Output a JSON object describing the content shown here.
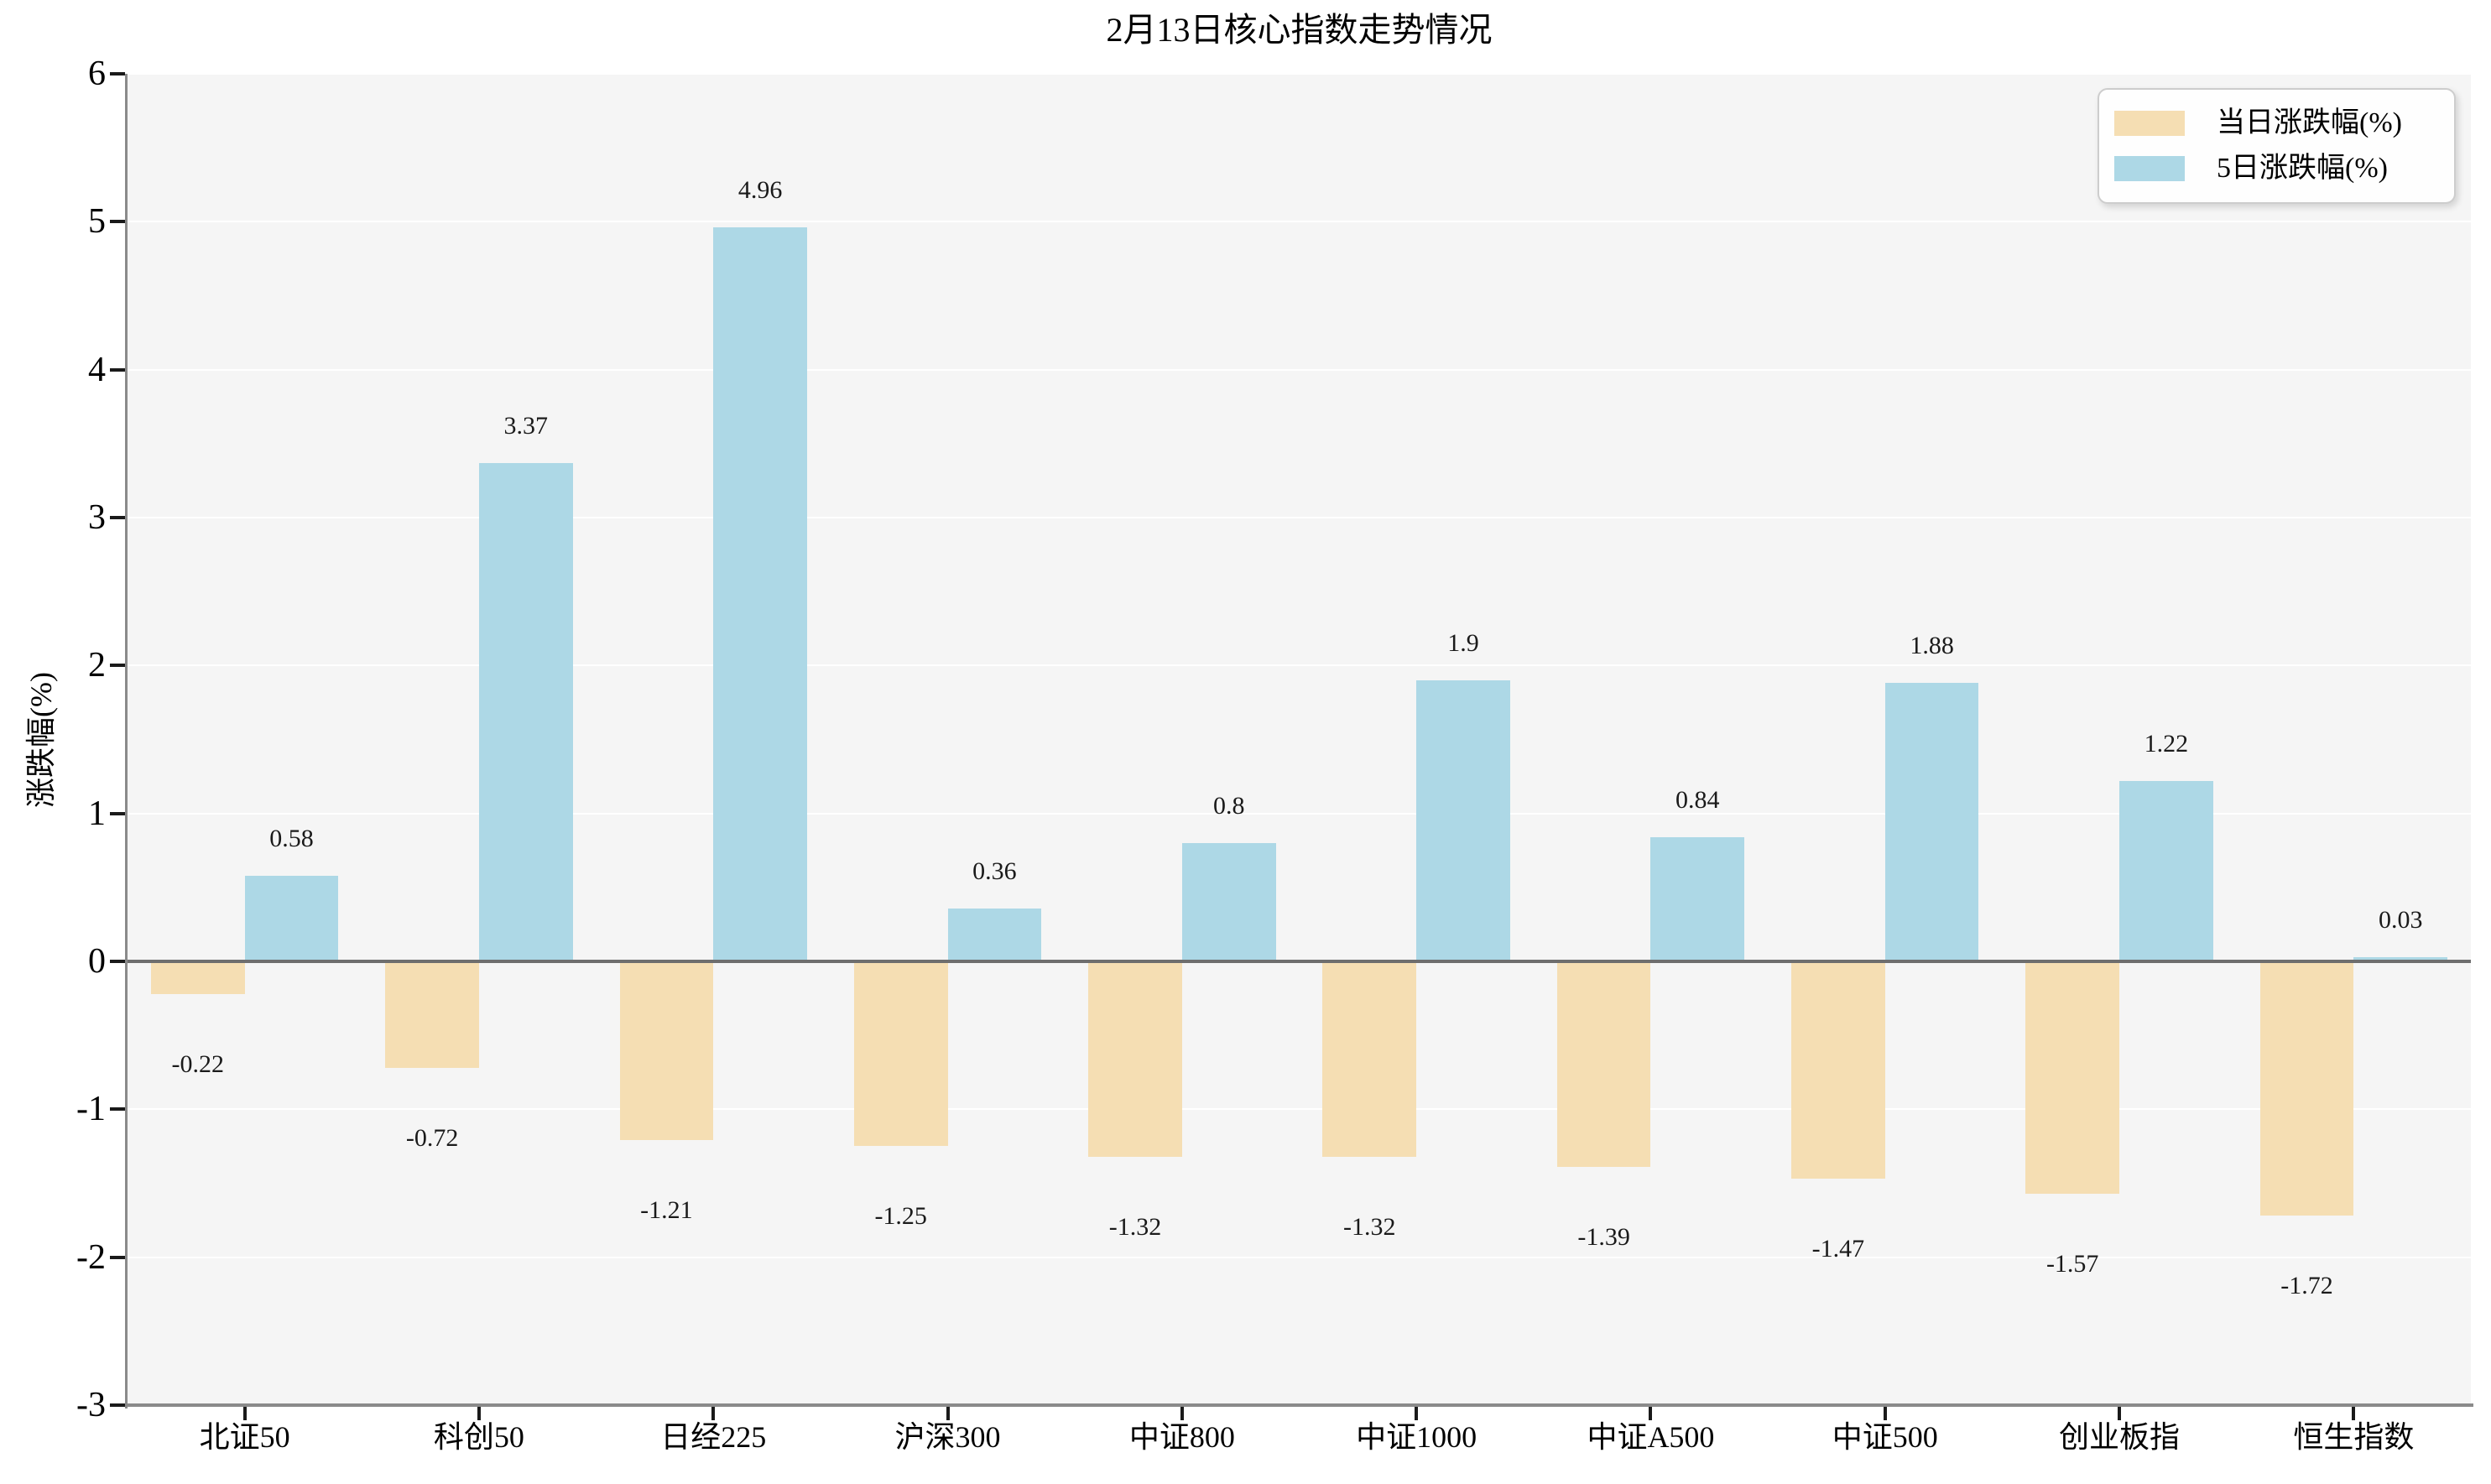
{
  "chart_data": {
    "type": "bar",
    "title": "2月13日核心指数走势情况",
    "xlabel": "",
    "ylabel": "涨跌幅(%)",
    "categories": [
      "北证50",
      "科创50",
      "日经225",
      "沪深300",
      "中证800",
      "中证1000",
      "中证A500",
      "中证500",
      "创业板指",
      "恒生指数"
    ],
    "series": [
      {
        "name": "当日涨跌幅(%)",
        "color": "#f5deb3",
        "values": [
          -0.22,
          -0.72,
          -1.21,
          -1.25,
          -1.32,
          -1.32,
          -1.39,
          -1.47,
          -1.57,
          -1.72
        ]
      },
      {
        "name": "5日涨跌幅(%)",
        "color": "#add8e6",
        "values": [
          0.58,
          3.37,
          4.96,
          0.36,
          0.8,
          1.9,
          0.84,
          1.88,
          1.22,
          0.03
        ]
      }
    ],
    "ylim": [
      -3,
      6
    ],
    "yticks": [
      -3,
      -2,
      -1,
      0,
      1,
      2,
      3,
      4,
      5,
      6
    ],
    "grid": true,
    "legend_position": "upper-right",
    "bar_value_labels": true,
    "colors": {
      "figure_bg": "#ffffff",
      "plot_bg": "#f5f5f5",
      "grid": "#ffffff",
      "spine": "#8a8a8a",
      "zero_line": "#6e6e6e",
      "tick": "#1a1a1a",
      "text": "#000000"
    }
  }
}
